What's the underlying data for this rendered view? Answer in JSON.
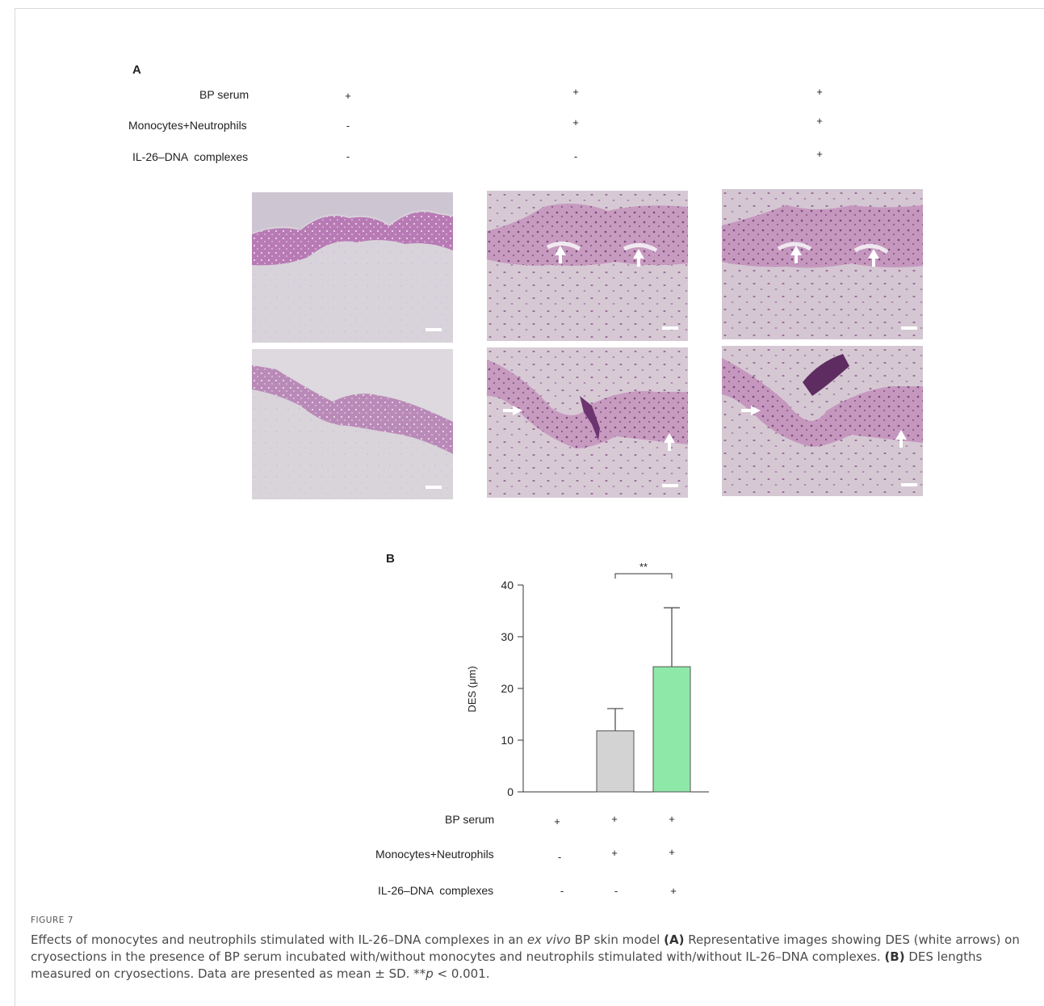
{
  "panel_a": {
    "letter": "A",
    "conditions": [
      {
        "label": "BP serum",
        "signs": [
          "+",
          "+",
          "+"
        ]
      },
      {
        "label": "Monocytes+Neutrophils",
        "signs": [
          "-",
          "+",
          "+"
        ]
      },
      {
        "label": "IL-26–DNA  complexes",
        "signs": [
          "-",
          "-",
          "+"
        ]
      }
    ]
  },
  "panel_b": {
    "letter": "B",
    "conditions": [
      {
        "label": "BP serum",
        "signs": [
          "+",
          "+",
          "+"
        ]
      },
      {
        "label": "Monocytes+Neutrophils",
        "signs": [
          "-",
          "+",
          "+"
        ]
      },
      {
        "label": "IL-26–DNA  complexes",
        "signs": [
          "-",
          "-",
          "+"
        ]
      }
    ]
  },
  "chart_data": {
    "type": "bar",
    "categories": [
      "1",
      "2",
      "3"
    ],
    "values": [
      0,
      11.8,
      24.2
    ],
    "error_sd": [
      0,
      4.3,
      11.4
    ],
    "colors": [
      "#ffffff",
      "#d3d3d3",
      "#8ee8a8"
    ],
    "ylabel": "DES (μm)",
    "ylim": [
      0,
      40
    ],
    "yticks": [
      0,
      10,
      20,
      30,
      40
    ],
    "significance": {
      "between": [
        1,
        2
      ],
      "label": "**"
    }
  },
  "caption": {
    "figure_label": "FIGURE 7",
    "title_pre": "Effects of monocytes and neutrophils stimulated with IL-26–DNA complexes in an ",
    "title_italic": "ex vivo",
    "title_post": " BP skin model ",
    "a_tag": "(A)",
    "a_text": " Representative images showing DES (white arrows) on cryosections in the presence of BP serum incubated with/without monocytes and neutrophils stimulated with/without IL-26–DNA complexes. ",
    "b_tag": "(B)",
    "b_text": " DES lengths measured on cryosections. Data are presented as mean ± SD. **",
    "p_italic": "p",
    "p_text": " < 0.001."
  }
}
